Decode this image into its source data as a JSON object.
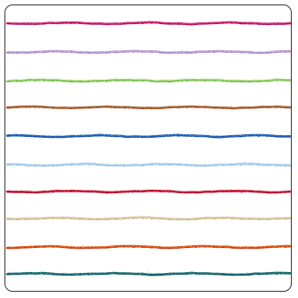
{
  "swatch": {
    "yarns": [
      {
        "name": "magenta",
        "base": "#c8206e",
        "fleck": "#e8589a",
        "dark": "#8e1048"
      },
      {
        "name": "lilac",
        "base": "#b89ad2",
        "fleck": "#d8c4ea",
        "dark": "#8e6fb0"
      },
      {
        "name": "lime-green",
        "base": "#8ccc5a",
        "fleck": "#b6e48a",
        "dark": "#5e9a34"
      },
      {
        "name": "copper-mix",
        "base": "#c0602a",
        "fleck": "#3a8a8e",
        "dark": "#7a3a18"
      },
      {
        "name": "royal-blue",
        "base": "#1e5fb4",
        "fleck": "#5b9be0",
        "dark": "#0e3a78"
      },
      {
        "name": "pale-sky",
        "base": "#a9cdea",
        "fleck": "#d4e7f6",
        "dark": "#7aa8d0"
      },
      {
        "name": "crimson",
        "base": "#c41838",
        "fleck": "#e85068",
        "dark": "#7e0c20"
      },
      {
        "name": "cream-tweed",
        "base": "#e0c89a",
        "fleck": "#b8d0e8",
        "dark": "#b89a68"
      },
      {
        "name": "orange-red",
        "base": "#dc4a1a",
        "fleck": "#f0a030",
        "dark": "#9a2a0a"
      },
      {
        "name": "teal",
        "base": "#1a6a72",
        "fleck": "#3a9aa2",
        "dark": "#0c4046"
      }
    ]
  }
}
